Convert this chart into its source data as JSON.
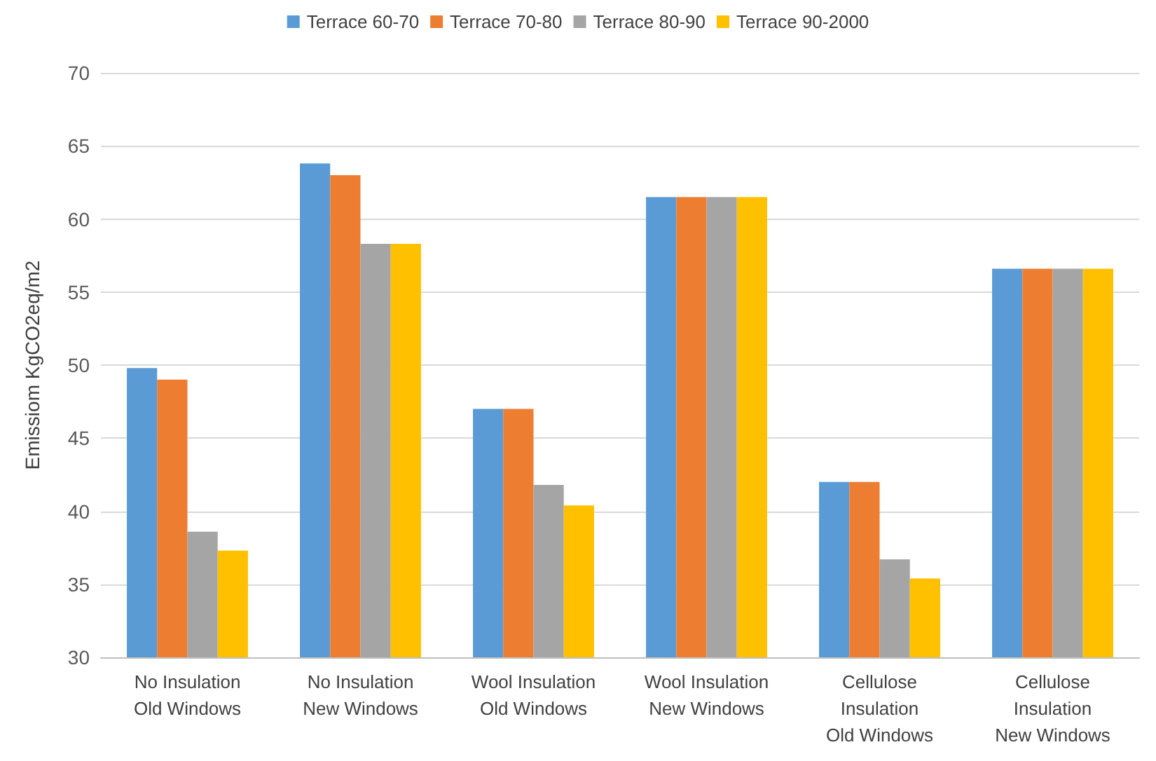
{
  "chart_data": {
    "type": "bar",
    "ylabel": "Emissiom KgCO2eq/m2",
    "categories": [
      "No Insulation\nOld Windows",
      "No Insulation\nNew Windows",
      "Wool Insulation\nOld Windows",
      "Wool Insulation\nNew Windows",
      "Cellulose\nInsulation\nOld Windows",
      "Cellulose\nInsulation\nNew Windows"
    ],
    "series": [
      {
        "name": "Terrace 60-70",
        "color": "#5b9bd5",
        "values": [
          49.8,
          63.8,
          47,
          61.5,
          42,
          56.6
        ]
      },
      {
        "name": "Terrace 70-80",
        "color": "#ed7d31",
        "values": [
          49,
          63,
          47,
          61.5,
          42,
          56.6
        ]
      },
      {
        "name": "Terrace 80-90",
        "color": "#a5a5a5",
        "values": [
          38.6,
          58.3,
          41.8,
          61.5,
          36.7,
          56.6
        ]
      },
      {
        "name": "Terrace 90-2000",
        "color": "#ffc000",
        "values": [
          37.3,
          58.3,
          40.4,
          61.5,
          35.4,
          56.6
        ]
      }
    ],
    "ylim": [
      30,
      70
    ],
    "yticks": [
      30,
      35,
      40,
      45,
      50,
      55,
      60,
      65,
      70
    ],
    "grid": "y",
    "legend": "top"
  }
}
